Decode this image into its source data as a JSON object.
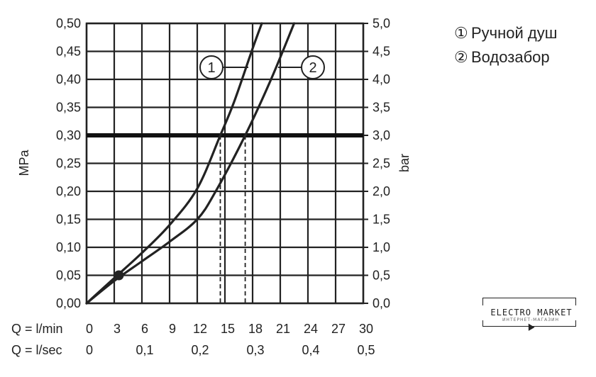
{
  "chart_data": {
    "type": "line",
    "y_left": {
      "label": "MPa",
      "ticks": [
        "0,00",
        "0,05",
        "0,10",
        "0,15",
        "0,20",
        "0,25",
        "0,30",
        "0,35",
        "0,40",
        "0,45",
        "0,50"
      ],
      "range": [
        0,
        0.5
      ]
    },
    "y_right": {
      "label": "bar",
      "ticks": [
        "0,0",
        "0,5",
        "1,0",
        "1,5",
        "2,0",
        "2,5",
        "3,0",
        "3,5",
        "4,0",
        "4,5",
        "5,0"
      ],
      "range": [
        0,
        5
      ]
    },
    "x_primary": {
      "label": "Q = l/min",
      "ticks": [
        "0",
        "3",
        "6",
        "9",
        "12",
        "15",
        "18",
        "21",
        "24",
        "27",
        "30"
      ],
      "range": [
        0,
        30
      ]
    },
    "x_secondary": {
      "label": "Q = l/sec",
      "ticks": [
        {
          "value": 0,
          "text": "0"
        },
        {
          "value": 0.1,
          "text": "0,1"
        },
        {
          "value": 0.2,
          "text": "0,2"
        },
        {
          "value": 0.3,
          "text": "0,3"
        },
        {
          "value": 0.4,
          "text": "0,4"
        },
        {
          "value": 0.5,
          "text": "0,5"
        }
      ]
    },
    "grid": true,
    "reference_line": {
      "y": 0.3
    },
    "series": [
      {
        "marker_label": "1",
        "x": [
          0,
          3,
          6,
          9,
          12,
          14.5,
          16,
          18,
          19
        ],
        "y": [
          0,
          0.045,
          0.09,
          0.14,
          0.205,
          0.3,
          0.36,
          0.455,
          0.5
        ]
      },
      {
        "marker_label": "2",
        "x": [
          0,
          3,
          6,
          9,
          12,
          14,
          17.2,
          20,
          22.5
        ],
        "y": [
          0,
          0.04,
          0.075,
          0.11,
          0.15,
          0.2,
          0.3,
          0.4,
          0.5
        ]
      }
    ],
    "dashed_drops": [
      {
        "x": 14.5,
        "y": 0.3
      },
      {
        "x": 17.2,
        "y": 0.3
      }
    ],
    "point": {
      "x": 3.5,
      "y": 0.05
    },
    "callouts": [
      {
        "text": "1",
        "series": 0
      },
      {
        "text": "2",
        "series": 1
      }
    ]
  },
  "legend": {
    "items": [
      {
        "num": "①",
        "label": "Ручной душ"
      },
      {
        "num": "②",
        "label": "Водозабор"
      }
    ]
  },
  "watermark": {
    "text": "ELECTRO MARKET",
    "subtext": "ИНТЕРНЕТ-МАГАЗИН"
  },
  "colors": {
    "axis": "#222222",
    "grid": "#222222",
    "reference": "#111111",
    "curve": "#222222"
  }
}
